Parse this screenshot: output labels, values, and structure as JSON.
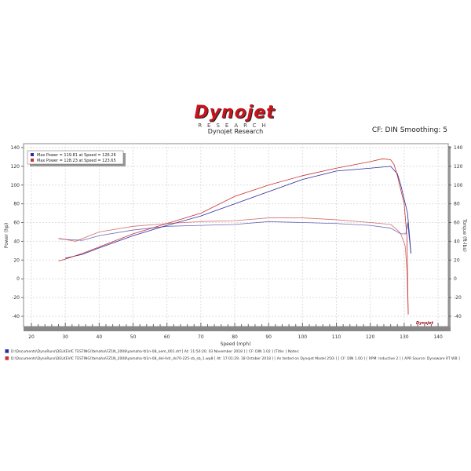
{
  "header": {
    "logo": "Dynojet",
    "logo_sub": "RESEARCH",
    "subtitle": "Dynojet Research",
    "cf": "CF: DIN Smoothing: 5"
  },
  "legend": [
    "Max Power = 119.81 at Speed = 126.26",
    "Max Power = 128.23 at Speed = 123.65"
  ],
  "files": [
    "D:\\Documents\\DynoRuns\\DELKEVIC TESTING\\Yamaha\\FZ1N_2008\\yamaha-fz1n-08_oem_001.drf [ At: 11:50:20, 03 November 2018 ] [ CF: DIN 1.02 ] [Title: ]  Notes:",
    "D:\\Documents\\DynoRuns\\DELKEVIC TESTING\\Yamaha\\FZ1N_2008\\yamaha-fz1n-08_del-hdr_ds70-225-cb_sb_1.wp8 [ At: 17:01:29, 18 October 2018 ] [ As tested on Dynojet Model 250i ] [ CF: DIN 1.00 ] [ RPM: Inductive 2 ] [ APR Source: Dynoware RT WB ]"
  ],
  "colors": {
    "run1": "#2a2aa0",
    "run2": "#c83030"
  },
  "chart_data": {
    "type": "line",
    "xlabel": "Speed (mph)",
    "ylabel": "Power (hp)",
    "y2label": "Torque (ft-lbs)",
    "xlim": [
      18,
      143
    ],
    "ylim": [
      -50,
      144
    ],
    "xticks": [
      20,
      30,
      40,
      50,
      60,
      70,
      80,
      90,
      100,
      110,
      120,
      130,
      140
    ],
    "yticks": [
      -40,
      -20,
      0,
      20,
      40,
      60,
      80,
      100,
      120,
      140
    ],
    "grid": true,
    "legend_position": "top-left",
    "series": [
      {
        "run": 1,
        "kind": "power",
        "x": [
          30,
          35,
          40,
          50,
          60,
          70,
          80,
          90,
          100,
          110,
          120,
          126,
          128,
          129,
          130,
          131,
          132
        ],
        "y": [
          22,
          26,
          33,
          46,
          57,
          67,
          80,
          93,
          106,
          115,
          118,
          120,
          112,
          100,
          85,
          70,
          27
        ]
      },
      {
        "run": 2,
        "kind": "power",
        "x": [
          28,
          30,
          35,
          40,
          50,
          60,
          70,
          80,
          90,
          100,
          110,
          120,
          123.65,
          126,
          127,
          128,
          129,
          130,
          130.8,
          131.2
        ],
        "y": [
          19,
          21,
          27,
          34,
          48,
          59,
          70,
          88,
          100,
          110,
          118,
          125,
          128,
          127,
          122,
          110,
          95,
          80,
          45,
          -38
        ]
      },
      {
        "run": 1,
        "kind": "torque",
        "x": [
          28,
          30,
          35,
          40,
          50,
          60,
          70,
          80,
          90,
          100,
          110,
          120,
          126,
          128,
          129,
          130.5,
          131,
          132
        ],
        "y": [
          43,
          42,
          41,
          46,
          52,
          56,
          57,
          58,
          61,
          60,
          59,
          57,
          54,
          50,
          48,
          48,
          60,
          27
        ]
      },
      {
        "run": 2,
        "kind": "torque",
        "x": [
          28,
          30,
          33,
          40,
          50,
          60,
          70,
          80,
          90,
          100,
          110,
          120,
          126,
          128,
          129,
          130.3,
          130.8,
          131.2
        ],
        "y": [
          43,
          42,
          40,
          50,
          56,
          59,
          61,
          62,
          65,
          65,
          63,
          60,
          58,
          52,
          48,
          35,
          10,
          -38
        ]
      }
    ]
  }
}
